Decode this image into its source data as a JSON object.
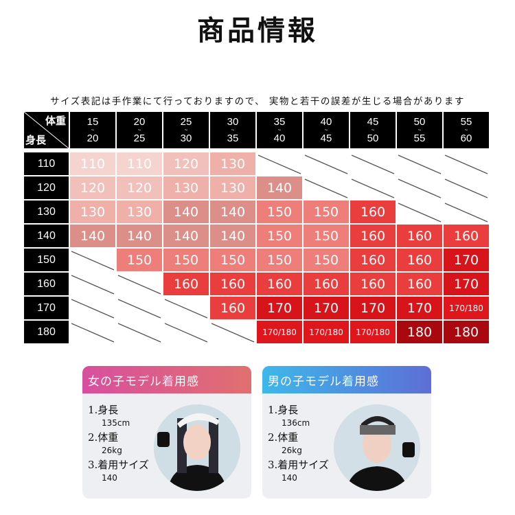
{
  "title": "商品情報",
  "note": "サイズ表記は手作業にて行っておりますので、 実物と若干の誤差が生じる場合があります",
  "table": {
    "corner_top": "体重",
    "corner_bottom": "身長",
    "weight_ranges": [
      [
        "15",
        "~",
        "20"
      ],
      [
        "20",
        "~",
        "25"
      ],
      [
        "25",
        "~",
        "30"
      ],
      [
        "30",
        "~",
        "35"
      ],
      [
        "35",
        "~",
        "40"
      ],
      [
        "40",
        "~",
        "45"
      ],
      [
        "45",
        "~",
        "50"
      ],
      [
        "50",
        "~",
        "55"
      ],
      [
        "55",
        "~",
        "60"
      ]
    ],
    "heights": [
      "110",
      "120",
      "130",
      "140",
      "150",
      "160",
      "170",
      "180"
    ],
    "rows": [
      [
        "110",
        "110",
        "120",
        "130",
        null,
        null,
        null,
        null,
        null
      ],
      [
        "120",
        "120",
        "130",
        "130",
        "140",
        null,
        null,
        null,
        null
      ],
      [
        "130",
        "130",
        "140",
        "140",
        "150",
        "150",
        "160",
        null,
        null
      ],
      [
        "140",
        "140",
        "140",
        "140",
        "150",
        "150",
        "160",
        "160",
        "160"
      ],
      [
        null,
        "150",
        "150",
        "150",
        "150",
        "150",
        "160",
        "160",
        "170"
      ],
      [
        null,
        null,
        "160",
        "160",
        "160",
        "160",
        "160",
        "160",
        "170"
      ],
      [
        null,
        null,
        null,
        "160",
        "170",
        "170",
        "170",
        "170",
        "170/180"
      ],
      [
        null,
        null,
        null,
        null,
        "170/180",
        "170/180",
        "170/180",
        "180",
        "180"
      ]
    ],
    "colors": {
      "110": "#f5d3cf",
      "120": "#f2c0ba",
      "130": "#eeb0a9",
      "140": "#dc8e89",
      "150": "#ee7e79",
      "160": "#ea3e3e",
      "170": "#d8141b",
      "170/180": "#e0161d",
      "180": "#a8080e"
    }
  },
  "cards": [
    {
      "title": "女の子モデル着用感",
      "items": [
        {
          "label": "1.身長",
          "value": "135cm"
        },
        {
          "label": "2.体重",
          "value": "26kg"
        },
        {
          "label": "3.着用サイズ",
          "value": "140"
        }
      ]
    },
    {
      "title": "男の子モデル着用感",
      "items": [
        {
          "label": "1.身長",
          "value": "136cm"
        },
        {
          "label": "2.体重",
          "value": "26kg"
        },
        {
          "label": "3.着用サイズ",
          "value": "140"
        }
      ]
    }
  ]
}
